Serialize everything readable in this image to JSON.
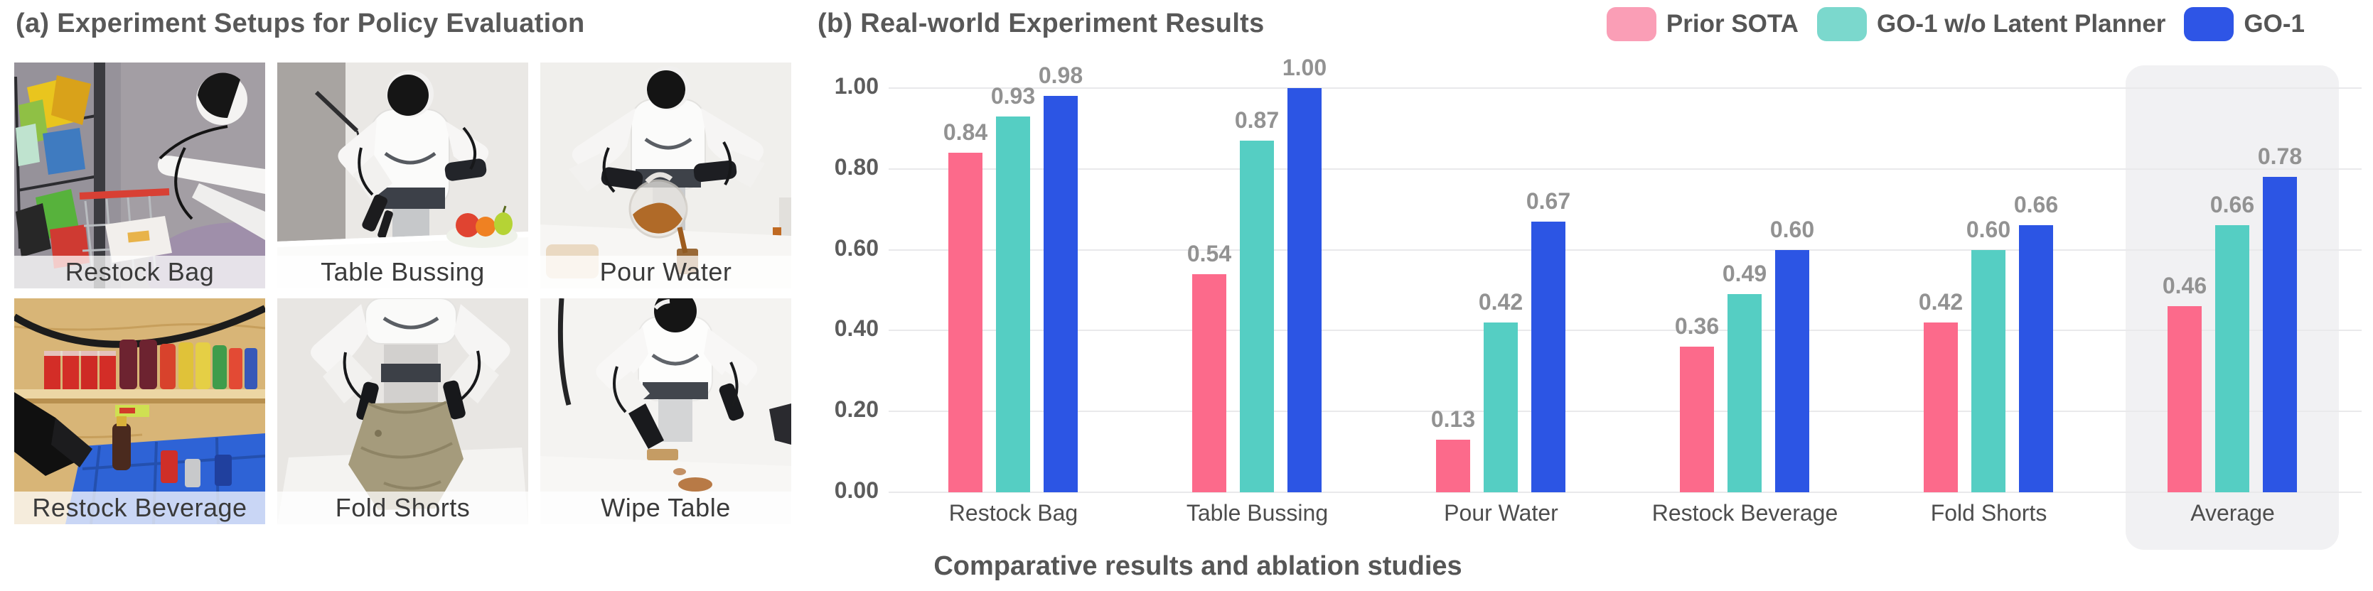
{
  "panel_a": {
    "title": "(a) Experiment Setups for Policy Evaluation",
    "setups": [
      {
        "label": "Restock Bag"
      },
      {
        "label": "Table Bussing"
      },
      {
        "label": "Pour Water"
      },
      {
        "label": "Restock Beverage"
      },
      {
        "label": "Fold Shorts"
      },
      {
        "label": "Wipe Table"
      }
    ]
  },
  "panel_b": {
    "title": "(b) Real-world Experiment Results",
    "caption": "Comparative results and ablation studies"
  },
  "chart_data": {
    "type": "bar",
    "title": "(b) Real-world Experiment Results",
    "categories": [
      "Restock Bag",
      "Table Bussing",
      "Pour Water",
      "Restock Beverage",
      "Fold Shorts",
      "Average"
    ],
    "series": [
      {
        "name": "Prior SOTA",
        "color": "#FC6A8B",
        "legend_swatch": "#FA9EB6",
        "values": [
          0.84,
          0.54,
          0.13,
          0.36,
          0.42,
          0.46
        ]
      },
      {
        "name": "GO-1 w/o Latent Planner",
        "color": "#55CEC3",
        "legend_swatch": "#7BD8CD",
        "values": [
          0.93,
          0.87,
          0.42,
          0.49,
          0.6,
          0.66
        ]
      },
      {
        "name": "GO-1",
        "color": "#2C55E4",
        "legend_swatch": "#2E55E6",
        "values": [
          0.98,
          1.0,
          0.67,
          0.6,
          0.66,
          0.78
        ]
      }
    ],
    "ylabel": "",
    "xlabel": "",
    "ylim": [
      0,
      1.0
    ],
    "yticks": [
      "0.00",
      "0.20",
      "0.40",
      "0.60",
      "0.80",
      "1.00"
    ],
    "grid": true,
    "legend_position": "top-right",
    "highlight_category": "Average",
    "highlight_color": "#f1f1f3",
    "value_label_format": "0.00"
  }
}
